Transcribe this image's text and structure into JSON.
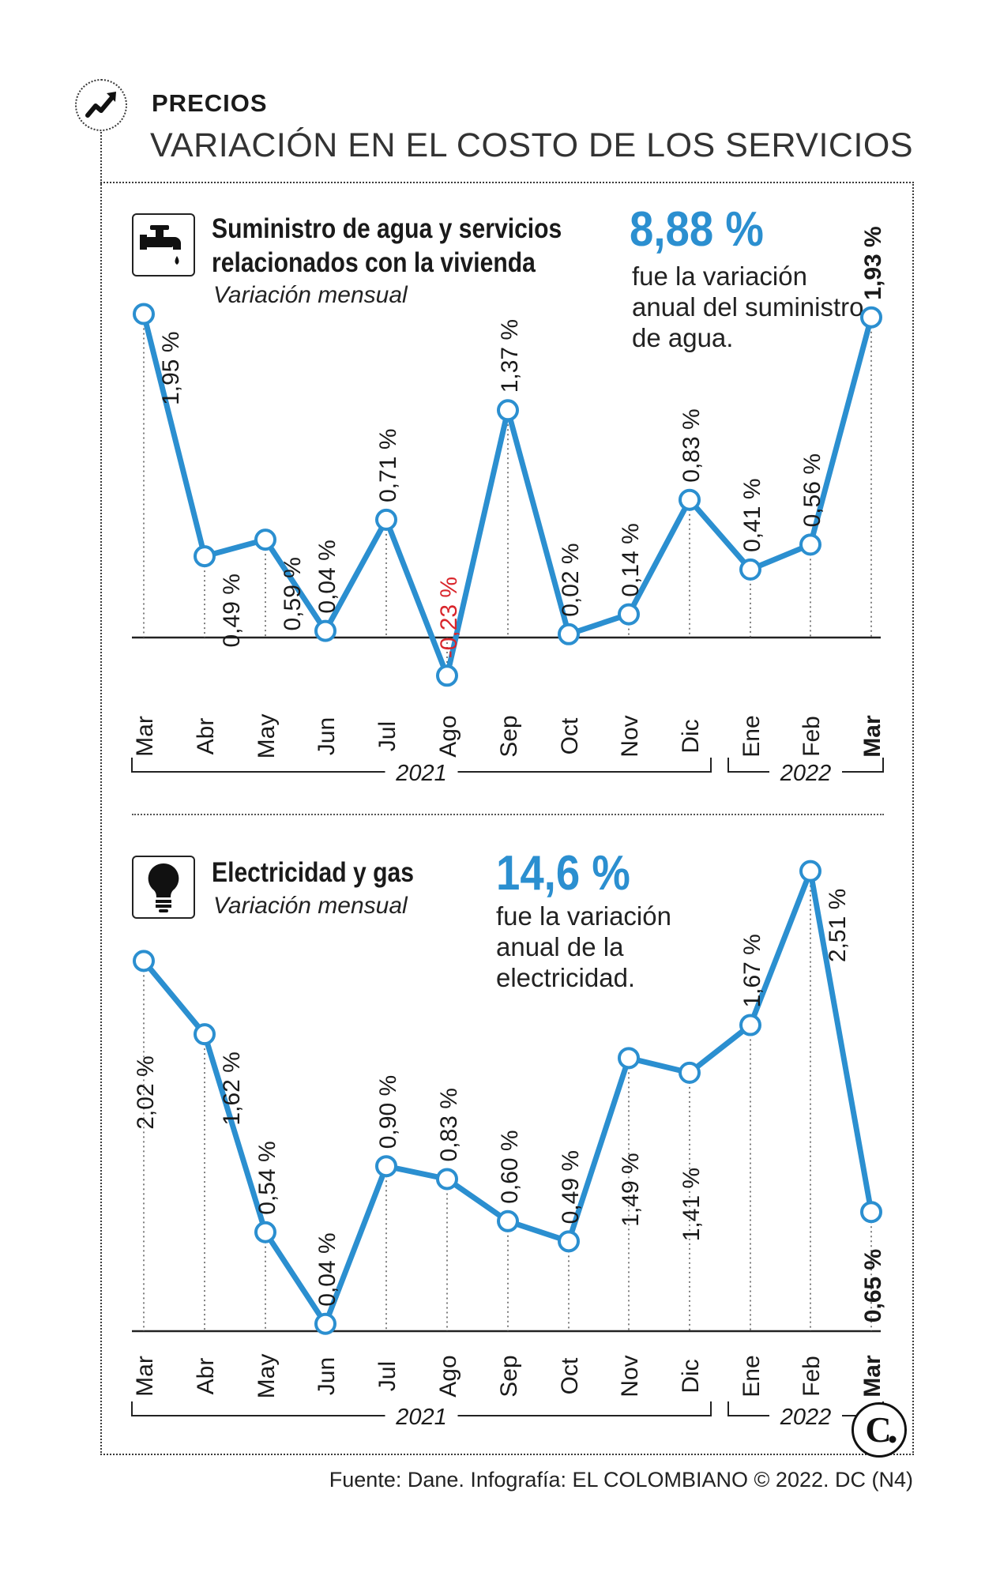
{
  "header": {
    "kicker": "PRECIOS",
    "headline": "VARIACIÓN EN EL COSTO DE LOS SERVICIOS"
  },
  "colors": {
    "accent": "#2b8fd0",
    "negative": "#d9252b",
    "text": "#1a1a1a"
  },
  "chart_data": [
    {
      "type": "line",
      "title": "Suministro de agua y servicios relacionados con la vivienda",
      "title_lines": [
        "Suministro de agua y servicios",
        "relacionados con la vivienda"
      ],
      "subtitle": "Variación mensual",
      "icon": "water-faucet-icon",
      "highlight_value": "8,88 %",
      "highlight_text": [
        "fue la variación",
        "anual del suministro",
        "de agua."
      ],
      "categories": [
        "Mar",
        "Abr",
        "May",
        "Jun",
        "Jul",
        "Ago",
        "Sep",
        "Oct",
        "Nov",
        "Dic",
        "Ene",
        "Feb",
        "Mar"
      ],
      "values": [
        1.95,
        0.49,
        0.59,
        0.04,
        0.71,
        -0.23,
        1.37,
        0.02,
        0.14,
        0.83,
        0.41,
        0.56,
        1.93
      ],
      "labels": [
        "1,95 %",
        "0,49 %",
        "0,59 %",
        "0,04 %",
        "0,71 %",
        "-0,23 %",
        "1,37 %",
        "0,02 %",
        "0,14 %",
        "0,83 %",
        "0,41 %",
        "0,56 %",
        "1,93 %"
      ],
      "year_groups": [
        "2021",
        "2022"
      ],
      "ylim": [
        -0.25,
        2.0
      ],
      "xlabel": "",
      "ylabel": ""
    },
    {
      "type": "line",
      "title": "Electricidad y gas",
      "title_lines": [
        "Electricidad y gas"
      ],
      "subtitle": "Variación mensual",
      "icon": "light-bulb-icon",
      "highlight_value": "14,6 %",
      "highlight_text": [
        "fue la variación",
        "anual de la",
        "electricidad."
      ],
      "categories": [
        "Mar",
        "Abr",
        "May",
        "Jun",
        "Jul",
        "Ago",
        "Sep",
        "Oct",
        "Nov",
        "Dic",
        "Ene",
        "Feb",
        "Mar"
      ],
      "values": [
        2.02,
        1.62,
        0.54,
        0.04,
        0.9,
        0.83,
        0.6,
        0.49,
        1.49,
        1.41,
        1.67,
        2.51,
        0.65
      ],
      "labels": [
        "2,02 %",
        "1,62 %",
        "0,54 %",
        "0,04 %",
        "0,90 %",
        "0,83 %",
        "0,60 %",
        "0,49 %",
        "1,49 %",
        "1,41 %",
        "1,67 %",
        "2,51 %",
        "0,65 %"
      ],
      "year_groups": [
        "2021",
        "2022"
      ],
      "ylim": [
        0,
        2.55
      ],
      "xlabel": "",
      "ylabel": ""
    }
  ],
  "footer": {
    "source": "Fuente: Dane. Infografía: EL COLOMBIANO © 2022. DC (N4)",
    "brand_icon": "el-colombiano-logo-icon"
  }
}
